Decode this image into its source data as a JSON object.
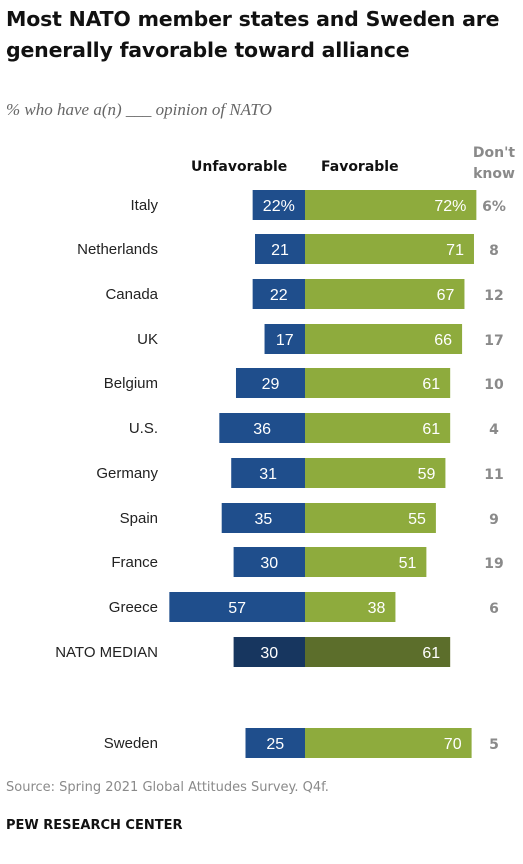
{
  "title": "Most NATO member states and Sweden are generally favorable toward alliance",
  "subtitle": "% who have a(n) ___ opinion of NATO",
  "column_headers": {
    "unfavorable": "Unfavorable",
    "favorable": "Favorable",
    "dont_know_line1": "Don't",
    "dont_know_line2": "know"
  },
  "colors": {
    "unfavorable": "#1f4e8c",
    "favorable": "#8eab3d",
    "median_unfavorable": "#17365f",
    "median_favorable": "#5c6e2b",
    "dont_know_text": "#8a8a8a"
  },
  "chart_data": {
    "type": "bar",
    "orientation": "horizontal-diverging",
    "categories": [
      "Italy",
      "Netherlands",
      "Canada",
      "UK",
      "Belgium",
      "U.S.",
      "Germany",
      "Spain",
      "France",
      "Greece",
      "NATO MEDIAN",
      "Sweden"
    ],
    "series": [
      {
        "name": "Unfavorable",
        "values": [
          22,
          21,
          22,
          17,
          29,
          36,
          31,
          35,
          30,
          57,
          30,
          25
        ],
        "labels": [
          "22%",
          "21",
          "22",
          "17",
          "29",
          "36",
          "31",
          "35",
          "30",
          "57",
          "30",
          "25"
        ]
      },
      {
        "name": "Favorable",
        "values": [
          72,
          71,
          67,
          66,
          61,
          61,
          59,
          55,
          51,
          38,
          61,
          70
        ],
        "labels": [
          "72%",
          "71",
          "67",
          "66",
          "61",
          "61",
          "59",
          "55",
          "51",
          "38",
          "61",
          "70"
        ]
      },
      {
        "name": "Don't know",
        "values": [
          6,
          8,
          12,
          17,
          10,
          4,
          11,
          9,
          19,
          6,
          null,
          5
        ],
        "labels": [
          "6%",
          "8",
          "12",
          "17",
          "10",
          "4",
          "11",
          "9",
          "19",
          "6",
          "",
          "5"
        ]
      }
    ],
    "highlight": [
      "NATO MEDIAN"
    ]
  },
  "source": "Source: Spring 2021 Global Attitudes Survey. Q4f.",
  "brand": "PEW RESEARCH CENTER"
}
